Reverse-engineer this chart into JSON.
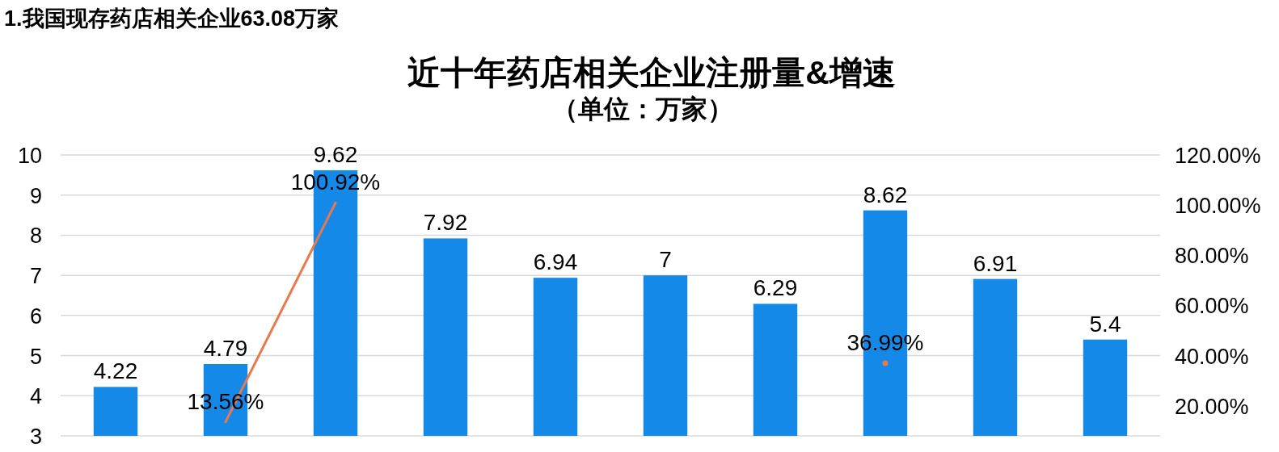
{
  "chart_data": {
    "type": "bar",
    "title": "近十年药店相关企业注册量&增速",
    "subtitle": "（单位：万家）",
    "annotations": [
      "1.我国现存药店相关企业63.08万家"
    ],
    "categories": [
      null,
      null,
      null,
      null,
      null,
      null,
      null,
      null,
      null,
      null
    ],
    "series": [
      {
        "color": "#1589e8",
        "values": [
          4.22,
          4.79,
          9.62,
          7.92,
          6.94,
          7,
          6.29,
          8.62,
          6.91,
          5.4
        ],
        "value_labels": [
          "4.22",
          "4.79",
          "9.62",
          "7.92",
          "6.94",
          "7",
          "6.29",
          "8.62",
          "6.91",
          "5.4"
        ]
      },
      {
        "type": "line",
        "axis": "y2",
        "color": "#e8794f",
        "values": [
          null,
          13.56,
          100.92,
          null,
          null,
          null,
          null,
          36.99,
          null,
          null
        ],
        "value_labels": [
          null,
          "13.56%",
          "100.92%",
          null,
          null,
          null,
          null,
          "36.99%",
          null,
          null
        ]
      }
    ],
    "ylim": [
      3,
      10
    ],
    "yticks": [
      3,
      4,
      5,
      6,
      7,
      8,
      9,
      10
    ],
    "y2lim": [
      8,
      120
    ],
    "y2ticks": [
      {
        "value": 20,
        "label": "20.00%"
      },
      {
        "value": 40,
        "label": "40.00%"
      },
      {
        "value": 60,
        "label": "60.00%"
      },
      {
        "value": 80,
        "label": "80.00%"
      },
      {
        "value": 100,
        "label": "100.00%"
      },
      {
        "value": 120,
        "label": "120.00%"
      }
    ],
    "grid": "y"
  }
}
